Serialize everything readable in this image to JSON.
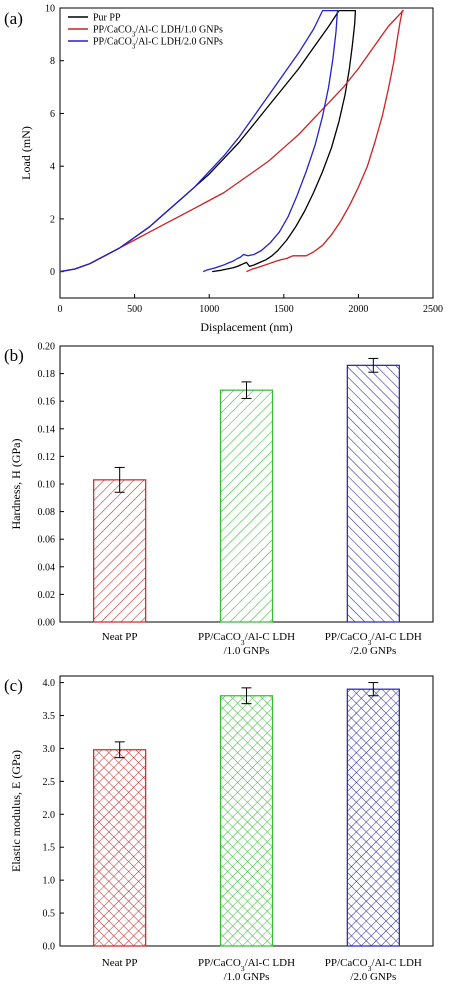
{
  "chart_data": [
    {
      "type": "line",
      "panel_label": "(a)",
      "xlabel": "Displacement (nm)",
      "ylabel": "Load (mN)",
      "xlim": [
        0,
        2500
      ],
      "ylim": [
        -1,
        10
      ],
      "xticks": [
        "0",
        "500",
        "1000",
        "1500",
        "2000",
        "2500"
      ],
      "yticks": [
        "0",
        "2",
        "4",
        "6",
        "8",
        "10"
      ],
      "legend_position": "top-left",
      "series": [
        {
          "name": "Pur PP",
          "color": "#000000",
          "x": [
            0,
            100,
            200,
            300,
            400,
            500,
            600,
            700,
            800,
            900,
            1000,
            1100,
            1200,
            1300,
            1400,
            1500,
            1600,
            1700,
            1800,
            1870,
            1960,
            1980,
            1975,
            1960,
            1940,
            1910,
            1870,
            1820,
            1760,
            1700,
            1640,
            1580,
            1520,
            1460,
            1420,
            1380,
            1340,
            1300,
            1270,
            1250,
            1230,
            1210,
            1190,
            1160,
            1120,
            1080,
            1040,
            1020
          ],
          "y": [
            0,
            0.1,
            0.3,
            0.6,
            0.9,
            1.3,
            1.7,
            2.2,
            2.7,
            3.2,
            3.7,
            4.3,
            4.9,
            5.6,
            6.3,
            7.0,
            7.7,
            8.5,
            9.3,
            9.9,
            9.9,
            9.9,
            9.4,
            8.6,
            7.7,
            6.7,
            5.7,
            4.7,
            3.8,
            3.0,
            2.3,
            1.7,
            1.2,
            0.8,
            0.6,
            0.45,
            0.35,
            0.25,
            0.2,
            0.35,
            0.3,
            0.25,
            0.2,
            0.15,
            0.1,
            0.05,
            0.02,
            0
          ]
        },
        {
          "name": "PP/CaCO3/Al-C LDH/1.0 GNPs",
          "color": "#cc2222",
          "x": [
            0,
            100,
            200,
            300,
            400,
            500,
            600,
            700,
            800,
            900,
            1000,
            1100,
            1200,
            1300,
            1400,
            1500,
            1600,
            1700,
            1800,
            1900,
            2000,
            2100,
            2200,
            2300,
            2295,
            2280,
            2260,
            2235,
            2200,
            2160,
            2110,
            2060,
            2000,
            1940,
            1880,
            1820,
            1760,
            1700,
            1650,
            1600,
            1560,
            1540,
            1520,
            1480,
            1440,
            1400,
            1360,
            1320,
            1290,
            1270,
            1250
          ],
          "y": [
            0,
            0.1,
            0.3,
            0.6,
            0.9,
            1.2,
            1.5,
            1.8,
            2.1,
            2.4,
            2.7,
            3.0,
            3.4,
            3.8,
            4.2,
            4.7,
            5.2,
            5.8,
            6.4,
            7.0,
            7.7,
            8.5,
            9.3,
            9.9,
            9.9,
            9.5,
            8.8,
            7.9,
            6.9,
            5.9,
            4.9,
            4.0,
            3.2,
            2.5,
            1.9,
            1.4,
            1.0,
            0.75,
            0.6,
            0.6,
            0.6,
            0.55,
            0.5,
            0.45,
            0.38,
            0.3,
            0.22,
            0.15,
            0.1,
            0.05,
            0
          ]
        },
        {
          "name": "PP/CaCO3/Al-C LDH/2.0 GNPs",
          "color": "#2222cc",
          "x": [
            0,
            100,
            200,
            300,
            400,
            500,
            600,
            700,
            800,
            900,
            1000,
            1100,
            1200,
            1300,
            1400,
            1500,
            1600,
            1700,
            1760,
            1850,
            1860,
            1850,
            1830,
            1800,
            1760,
            1710,
            1650,
            1590,
            1530,
            1470,
            1410,
            1350,
            1300,
            1260,
            1230,
            1210,
            1190,
            1160,
            1130,
            1100,
            1070,
            1040,
            1010,
            980,
            960
          ],
          "y": [
            0,
            0.1,
            0.3,
            0.6,
            0.9,
            1.3,
            1.7,
            2.2,
            2.7,
            3.2,
            3.8,
            4.4,
            5.1,
            5.9,
            6.7,
            7.5,
            8.3,
            9.2,
            9.9,
            9.9,
            9.9,
            9.1,
            8.1,
            7.0,
            5.9,
            4.8,
            3.8,
            2.9,
            2.1,
            1.5,
            1.1,
            0.8,
            0.65,
            0.6,
            0.65,
            0.55,
            0.5,
            0.4,
            0.33,
            0.26,
            0.2,
            0.14,
            0.1,
            0.05,
            0
          ]
        }
      ]
    },
    {
      "type": "bar",
      "panel_label": "(b)",
      "xlabel": "",
      "ylabel": "Hardness, H (GPa)",
      "ylim": [
        0,
        0.2
      ],
      "yticks": [
        "0.00",
        "0.02",
        "0.04",
        "0.06",
        "0.08",
        "0.10",
        "0.12",
        "0.14",
        "0.16",
        "0.18",
        "0.20"
      ],
      "categories": [
        {
          "line1": "Neat PP",
          "line2": ""
        },
        {
          "line1": "PP/CaCO3/Al-C LDH",
          "line2": "/1.0 GNPs"
        },
        {
          "line1": "PP/CaCO3/Al-C LDH",
          "line2": "/2.0 GNPs"
        }
      ],
      "values": [
        0.103,
        0.168,
        0.186
      ],
      "errors": [
        0.009,
        0.006,
        0.005
      ],
      "colors": [
        "#cc2222",
        "#33bb33",
        "#2222aa"
      ],
      "pattern": "diagonal-hatch"
    },
    {
      "type": "bar",
      "panel_label": "(c)",
      "xlabel": "",
      "ylabel": "Elastic modulus, E (GPa)",
      "ylim": [
        0,
        4.1
      ],
      "yticks": [
        "0.0",
        "0.5",
        "1.0",
        "1.5",
        "2.0",
        "2.5",
        "3.0",
        "3.5",
        "4.0"
      ],
      "categories": [
        {
          "line1": "Neat PP",
          "line2": ""
        },
        {
          "line1": "PP/CaCO3/Al-C LDH",
          "line2": "/1.0 GNPs"
        },
        {
          "line1": "PP/CaCO3/Al-C LDH",
          "line2": "/2.0 GNPs"
        }
      ],
      "values": [
        2.98,
        3.8,
        3.9
      ],
      "errors": [
        0.12,
        0.12,
        0.1
      ],
      "colors": [
        "#cc2222",
        "#33bb33",
        "#2222aa"
      ],
      "pattern": "cross-hatch"
    }
  ]
}
